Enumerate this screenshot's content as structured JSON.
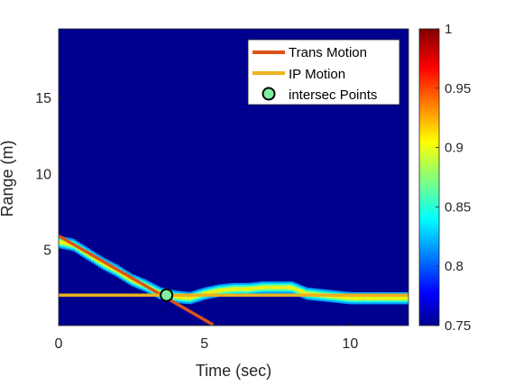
{
  "chart_data": {
    "type": "heatmap",
    "title": "",
    "xlabel": "Time (sec)",
    "ylabel": "Range (m)",
    "xlim": [
      0,
      12
    ],
    "ylim": [
      0,
      19.5
    ],
    "xticks": [
      0,
      5,
      10
    ],
    "yticks": [
      5,
      10,
      15
    ],
    "colorbar": {
      "clim": [
        0.75,
        1
      ],
      "ticks": [
        "0.75",
        "0.8",
        "0.85",
        "0.9",
        "0.95",
        "1"
      ]
    },
    "heatmap_track": [
      {
        "t": 0.0,
        "r": 5.5
      },
      {
        "t": 0.5,
        "r": 5.3
      },
      {
        "t": 1.0,
        "r": 4.7
      },
      {
        "t": 1.5,
        "r": 4.1
      },
      {
        "t": 2.0,
        "r": 3.6
      },
      {
        "t": 2.5,
        "r": 3.0
      },
      {
        "t": 3.0,
        "r": 2.6
      },
      {
        "t": 3.5,
        "r": 2.1
      },
      {
        "t": 4.0,
        "r": 1.9
      },
      {
        "t": 4.5,
        "r": 1.8
      },
      {
        "t": 5.0,
        "r": 2.1
      },
      {
        "t": 5.5,
        "r": 2.3
      },
      {
        "t": 6.0,
        "r": 2.4
      },
      {
        "t": 6.5,
        "r": 2.4
      },
      {
        "t": 7.0,
        "r": 2.5
      },
      {
        "t": 7.5,
        "r": 2.5
      },
      {
        "t": 8.0,
        "r": 2.5
      },
      {
        "t": 8.5,
        "r": 2.1
      },
      {
        "t": 9.0,
        "r": 2.0
      },
      {
        "t": 9.5,
        "r": 1.9
      },
      {
        "t": 10.0,
        "r": 1.8
      },
      {
        "t": 11.0,
        "r": 1.8
      },
      {
        "t": 12.0,
        "r": 1.8
      }
    ],
    "series": [
      {
        "name": "Trans Motion",
        "type": "line",
        "color": "#D95319",
        "points": [
          {
            "x": 0,
            "y": 5.9
          },
          {
            "x": 5.3,
            "y": 0.05
          }
        ]
      },
      {
        "name": "IP Motion",
        "type": "line",
        "color": "#EDB120",
        "points": [
          {
            "x": 0,
            "y": 2.0
          },
          {
            "x": 12,
            "y": 2.0
          }
        ]
      },
      {
        "name": "intersec Points",
        "type": "scatter",
        "color": "#80F0A0",
        "points": [
          {
            "x": 3.7,
            "y": 2.0
          }
        ]
      }
    ],
    "legend": "top-right",
    "grid": false
  }
}
